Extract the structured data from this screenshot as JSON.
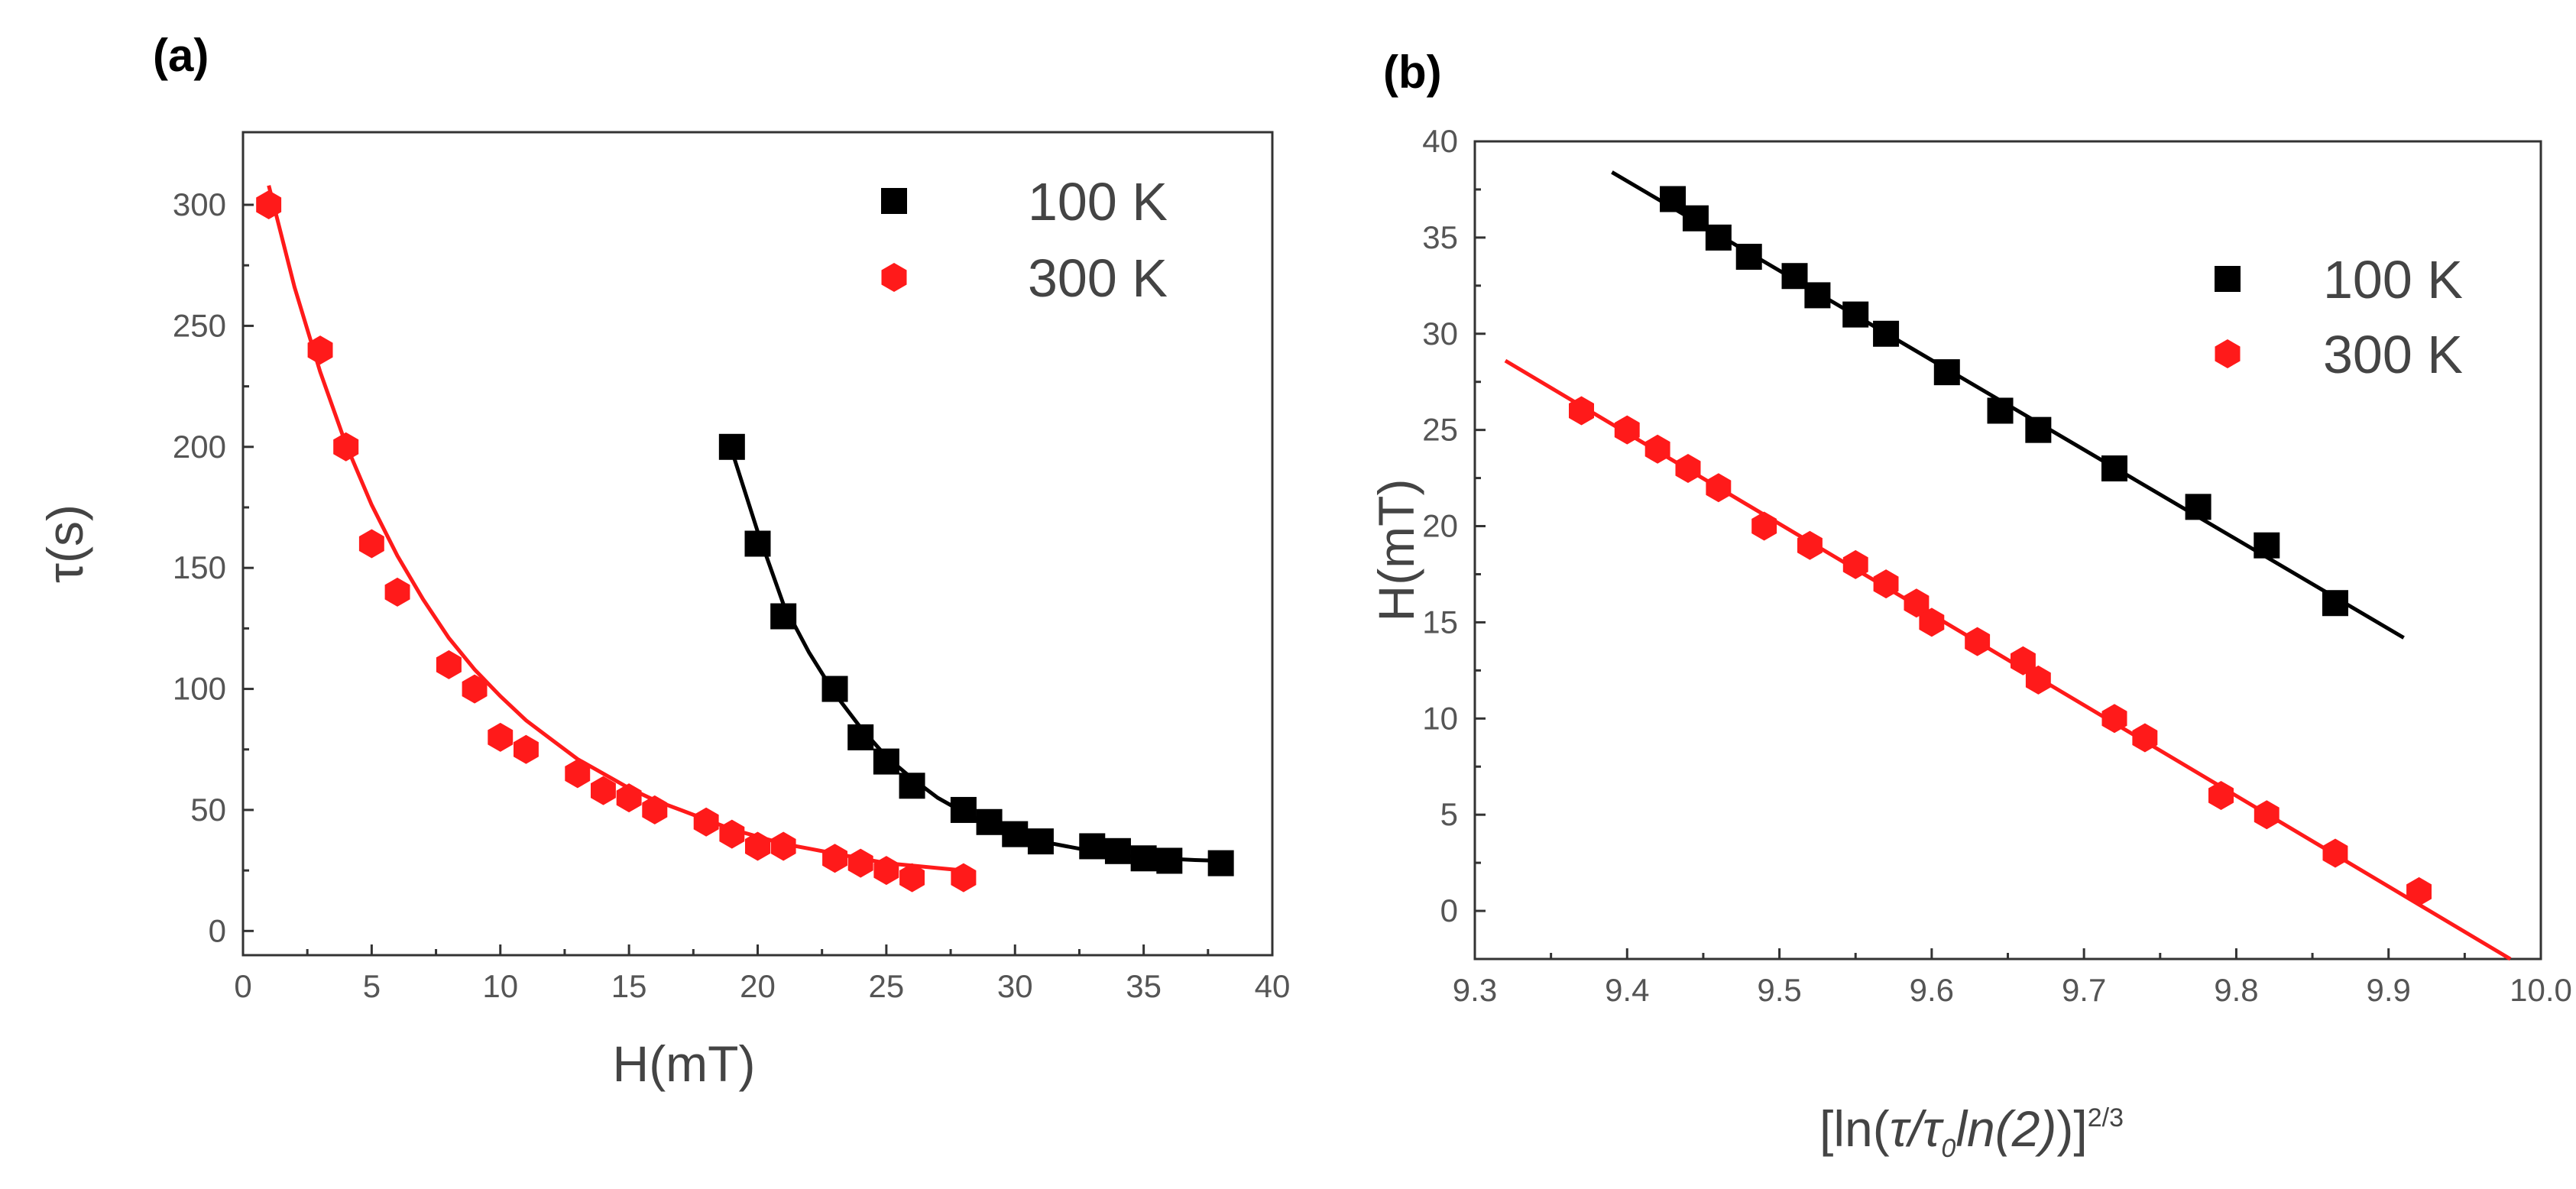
{
  "panels": {
    "a_label": "(a)",
    "b_label": "(b)"
  },
  "colors": {
    "black_series": "#000000",
    "red_series": "#ff1a1a"
  },
  "chart_data": [
    {
      "id": "a",
      "type": "scatter",
      "xlabel": "H(mT)",
      "ylabel": "τ(s)",
      "xlim": [
        0,
        40
      ],
      "ylim": [
        -10,
        330
      ],
      "xticks": [
        0,
        5,
        10,
        15,
        20,
        25,
        30,
        35,
        40
      ],
      "yticks": [
        0,
        50,
        100,
        150,
        200,
        250,
        300
      ],
      "legend": "top-right",
      "series": [
        {
          "name": "100 K",
          "marker": "square",
          "color": "#000000",
          "points": [
            [
              19,
              200
            ],
            [
              20,
              160
            ],
            [
              21,
              130
            ],
            [
              23,
              100
            ],
            [
              24,
              80
            ],
            [
              25,
              70
            ],
            [
              26,
              60
            ],
            [
              28,
              50
            ],
            [
              29,
              45
            ],
            [
              30,
              40
            ],
            [
              31,
              37
            ],
            [
              33,
              35
            ],
            [
              34,
              33
            ],
            [
              35,
              30
            ],
            [
              36,
              29
            ],
            [
              38,
              28
            ]
          ],
          "fit": [
            [
              18.8,
              205
            ],
            [
              20,
              165
            ],
            [
              21,
              135
            ],
            [
              22,
              115
            ],
            [
              23,
              98
            ],
            [
              24,
              84
            ],
            [
              25,
              72
            ],
            [
              26,
              63
            ],
            [
              27,
              55
            ],
            [
              28,
              49
            ],
            [
              29,
              44
            ],
            [
              30,
              40
            ],
            [
              31,
              37
            ],
            [
              32,
              35
            ],
            [
              33,
              33
            ],
            [
              34,
              31.5
            ],
            [
              35,
              30.5
            ],
            [
              36,
              29.8
            ],
            [
              37,
              29.3
            ],
            [
              38,
              29
            ]
          ]
        },
        {
          "name": "300 K",
          "marker": "hexagon",
          "color": "#ff1a1a",
          "points": [
            [
              1,
              300
            ],
            [
              3,
              240
            ],
            [
              4,
              200
            ],
            [
              5,
              160
            ],
            [
              6,
              140
            ],
            [
              8,
              110
            ],
            [
              9,
              100
            ],
            [
              10,
              80
            ],
            [
              11,
              75
            ],
            [
              13,
              65
            ],
            [
              14,
              58
            ],
            [
              15,
              55
            ],
            [
              16,
              50
            ],
            [
              18,
              45
            ],
            [
              19,
              40
            ],
            [
              20,
              35
            ],
            [
              21,
              35
            ],
            [
              23,
              30
            ],
            [
              24,
              28
            ],
            [
              25,
              25
            ],
            [
              26,
              22
            ],
            [
              28,
              22
            ]
          ],
          "fit": [
            [
              1,
              308
            ],
            [
              2,
              266
            ],
            [
              3,
              231
            ],
            [
              4,
              201
            ],
            [
              5,
              176
            ],
            [
              6,
              155
            ],
            [
              7,
              137
            ],
            [
              8,
              121
            ],
            [
              9,
              108
            ],
            [
              10,
              97
            ],
            [
              11,
              87
            ],
            [
              12,
              79
            ],
            [
              13,
              71
            ],
            [
              14,
              65
            ],
            [
              15,
              59
            ],
            [
              16,
              54
            ],
            [
              17,
              50
            ],
            [
              18,
              46
            ],
            [
              19,
              42
            ],
            [
              20,
              39
            ],
            [
              21,
              36
            ],
            [
              22,
              34
            ],
            [
              23,
              32
            ],
            [
              24,
              30
            ],
            [
              25,
              28
            ],
            [
              26,
              27
            ],
            [
              27,
              26
            ],
            [
              28,
              25
            ]
          ]
        }
      ]
    },
    {
      "id": "b",
      "type": "scatter",
      "xlabel_parts": [
        "[ln(",
        "τ/τ",
        "0",
        "ln(2)",
        ")]",
        "2/3"
      ],
      "ylabel": "H(mT)",
      "xlim": [
        9.3,
        10.0
      ],
      "ylim": [
        -2.5,
        40
      ],
      "xticks": [
        9.3,
        9.4,
        9.5,
        9.6,
        9.7,
        9.8,
        9.9,
        10.0
      ],
      "yticks": [
        0,
        5,
        10,
        15,
        20,
        25,
        30,
        35,
        40
      ],
      "legend": "top-right",
      "series": [
        {
          "name": "100 K",
          "marker": "square",
          "color": "#000000",
          "points": [
            [
              9.43,
              37
            ],
            [
              9.445,
              36
            ],
            [
              9.46,
              35
            ],
            [
              9.48,
              34
            ],
            [
              9.51,
              33
            ],
            [
              9.525,
              32
            ],
            [
              9.55,
              31
            ],
            [
              9.57,
              30
            ],
            [
              9.61,
              28
            ],
            [
              9.645,
              26
            ],
            [
              9.67,
              25
            ],
            [
              9.72,
              23
            ],
            [
              9.775,
              21
            ],
            [
              9.82,
              19
            ],
            [
              9.865,
              16
            ]
          ],
          "fit": [
            [
              9.39,
              38.4
            ],
            [
              9.91,
              14.2
            ]
          ]
        },
        {
          "name": "300 K",
          "marker": "hexagon",
          "color": "#ff1a1a",
          "points": [
            [
              9.37,
              26
            ],
            [
              9.4,
              25
            ],
            [
              9.42,
              24
            ],
            [
              9.44,
              23
            ],
            [
              9.46,
              22
            ],
            [
              9.49,
              20
            ],
            [
              9.52,
              19
            ],
            [
              9.55,
              18
            ],
            [
              9.57,
              17
            ],
            [
              9.59,
              16
            ],
            [
              9.6,
              15
            ],
            [
              9.63,
              14
            ],
            [
              9.66,
              13
            ],
            [
              9.67,
              12
            ],
            [
              9.72,
              10
            ],
            [
              9.74,
              9
            ],
            [
              9.79,
              6
            ],
            [
              9.82,
              5
            ],
            [
              9.865,
              3
            ],
            [
              9.92,
              1
            ]
          ],
          "fit": [
            [
              9.32,
              28.6
            ],
            [
              9.98,
              -2.5
            ]
          ]
        }
      ]
    }
  ]
}
